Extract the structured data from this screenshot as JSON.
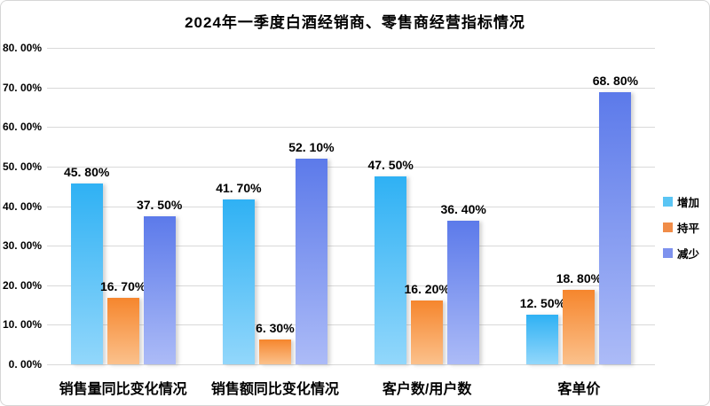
{
  "chart_data": {
    "type": "bar",
    "title": "2024年一季度白酒经销商、零售商经营指标情况",
    "categories": [
      "销售量同比变化情况",
      "销售额同比变化情况",
      "客户数/用户数",
      "客单价"
    ],
    "series": [
      {
        "name": "增加",
        "values": [
          45.8,
          41.7,
          47.5,
          12.5
        ],
        "labels": [
          "45. 80%",
          "41. 70%",
          "47. 50%",
          "12. 50%"
        ],
        "color_top": "#2fb1f4",
        "color_bottom": "#92d7fb",
        "legend_color": "#5ac5f4"
      },
      {
        "name": "持平",
        "values": [
          16.7,
          6.3,
          16.2,
          18.8
        ],
        "labels": [
          "16. 70%",
          "6. 30%",
          "16. 20%",
          "18. 80%"
        ],
        "color_top": "#f6862d",
        "color_bottom": "#fbc18c",
        "legend_color": "#f08c48"
      },
      {
        "name": "减少",
        "values": [
          37.5,
          52.1,
          36.4,
          68.8
        ],
        "labels": [
          "37. 50%",
          "52. 10%",
          "36. 40%",
          "68. 80%"
        ],
        "color_top": "#5c7aea",
        "color_bottom": "#acbbf7",
        "legend_color": "#7e92ee"
      }
    ],
    "ylim": [
      0,
      80
    ],
    "y_ticks": [
      {
        "value": 80,
        "label": "80. 00%"
      },
      {
        "value": 70,
        "label": "70. 00%"
      },
      {
        "value": 60,
        "label": "60. 00%"
      },
      {
        "value": 50,
        "label": "50. 00%"
      },
      {
        "value": 40,
        "label": "40. 00%"
      },
      {
        "value": 30,
        "label": "30. 00%"
      },
      {
        "value": 20,
        "label": "20. 00%"
      },
      {
        "value": 10,
        "label": "10. 00%"
      },
      {
        "value": 0,
        "label": "0. 00%"
      }
    ],
    "grid": true,
    "legend_position": "right"
  }
}
